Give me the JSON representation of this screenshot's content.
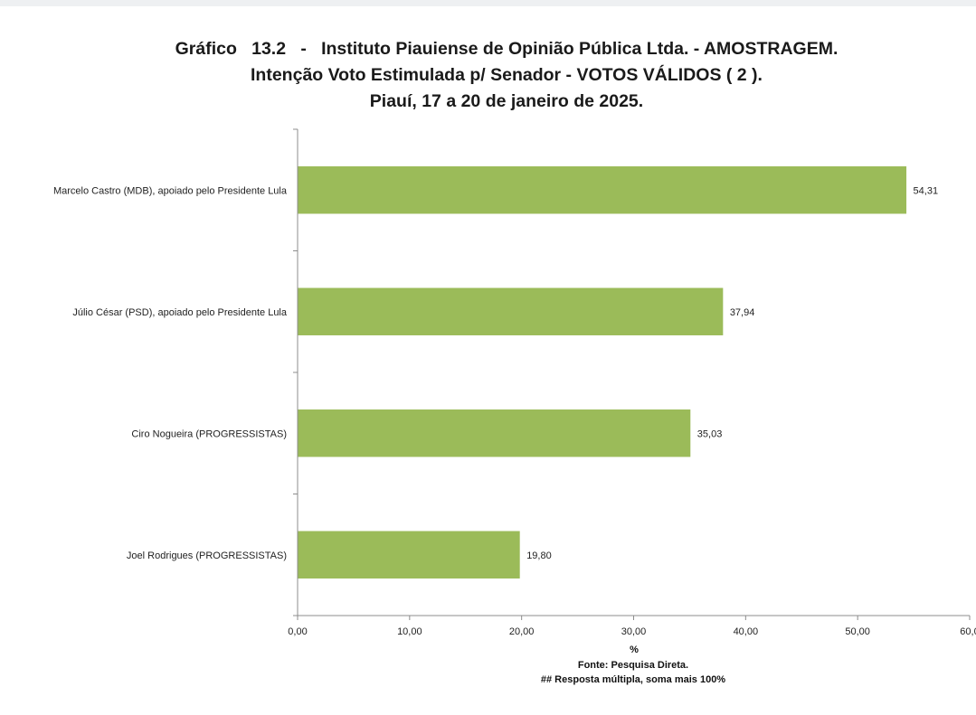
{
  "header": {
    "title_line1": "Gráfico   13.2   -   Instituto Piauiense de Opinião Pública Ltda. - AMOSTRAGEM.",
    "title_line2": "Intenção Voto Estimulada p/ Senador - VOTOS VÁLIDOS ( 2 ).",
    "title_line3": "Piauí, 17 a 20 de janeiro de 2025."
  },
  "chart_data": {
    "type": "bar",
    "orientation": "horizontal",
    "categories": [
      "Marcelo Castro (MDB), apoiado pelo Presidente Lula",
      "Júlio César (PSD), apoiado pelo Presidente Lula",
      "Ciro Nogueira (PROGRESSISTAS)",
      "Joel Rodrigues (PROGRESSISTAS)"
    ],
    "values": [
      54.31,
      37.94,
      35.03,
      19.8
    ],
    "value_labels": [
      "54,31",
      "37,94",
      "35,03",
      "19,80"
    ],
    "xlabel": "%",
    "xlim": [
      0,
      60
    ],
    "xticks": [
      "0,00",
      "10,00",
      "20,00",
      "30,00",
      "40,00",
      "50,00",
      "60,0"
    ],
    "bar_color": "#9bbb59",
    "grid": false,
    "legend": "none"
  },
  "footer": {
    "source": "Fonte: Pesquisa Direta.",
    "note": "##  Resposta múltipla, soma mais 100%"
  }
}
